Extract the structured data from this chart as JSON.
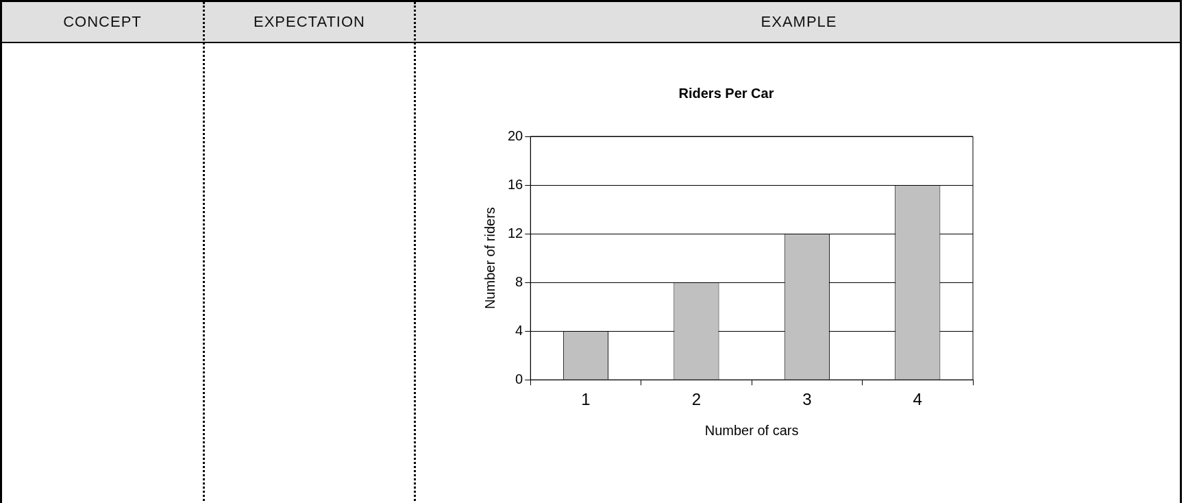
{
  "chart_data": {
    "type": "bar",
    "title": "Riders Per Car",
    "xlabel": "Number of cars",
    "ylabel": "Number of riders",
    "categories": [
      "1",
      "2",
      "3",
      "4"
    ],
    "values": [
      4,
      8,
      12,
      16
    ],
    "color": "#c0c0c0",
    "ylim": [
      0,
      20
    ],
    "yticks": [
      0,
      4,
      8,
      12,
      16,
      20
    ],
    "grid": "y",
    "legend": false,
    "annotations": [
      "CONCEPT",
      "EXPECTATION",
      "EXAMPLE"
    ]
  }
}
